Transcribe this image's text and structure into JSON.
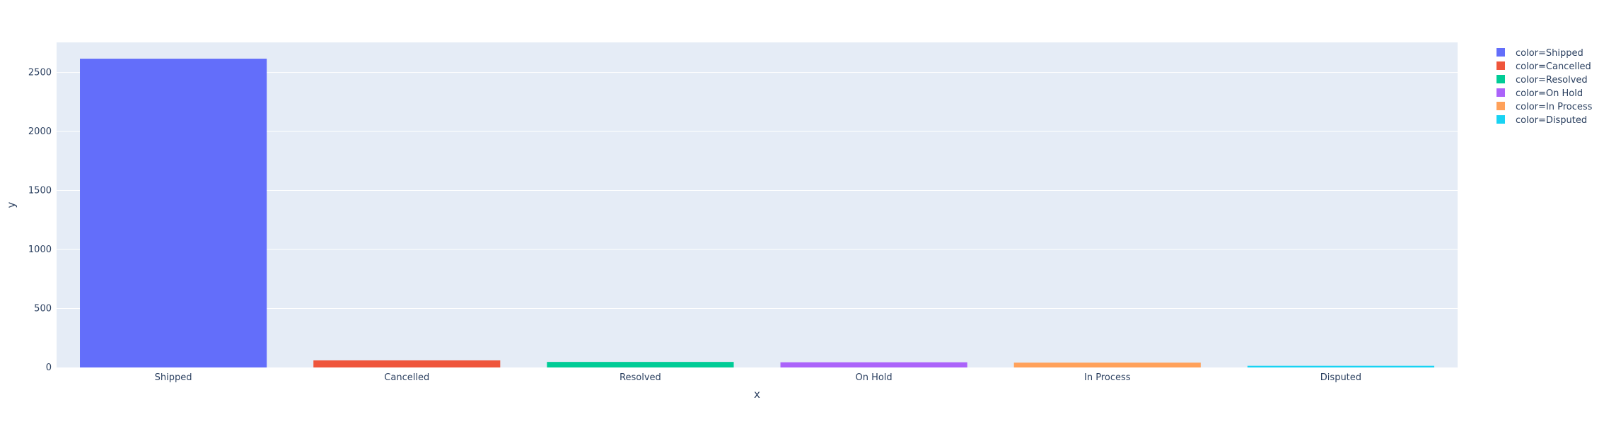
{
  "chart_data": {
    "type": "bar",
    "xlabel": "x",
    "ylabel": "y",
    "categories": [
      "Shipped",
      "Cancelled",
      "Resolved",
      "On Hold",
      "In Process",
      "Disputed"
    ],
    "series": [
      {
        "name": "color=Shipped",
        "category": "Shipped",
        "value": 2617,
        "color": "#636efa"
      },
      {
        "name": "color=Cancelled",
        "category": "Cancelled",
        "value": 60,
        "color": "#EF553B"
      },
      {
        "name": "color=Resolved",
        "category": "Resolved",
        "value": 47,
        "color": "#00cc96"
      },
      {
        "name": "color=On Hold",
        "category": "On Hold",
        "value": 44,
        "color": "#ab63fa"
      },
      {
        "name": "color=In Process",
        "category": "In Process",
        "value": 41,
        "color": "#FFA15A"
      },
      {
        "name": "color=Disputed",
        "category": "Disputed",
        "value": 14,
        "color": "#19d3f3"
      }
    ],
    "y_ticks": [
      0,
      500,
      1000,
      1500,
      2000,
      2500
    ],
    "ylim": [
      0,
      2755
    ],
    "grid": true,
    "legend_position": "top-right",
    "plot_background": "#e5ecf6"
  }
}
